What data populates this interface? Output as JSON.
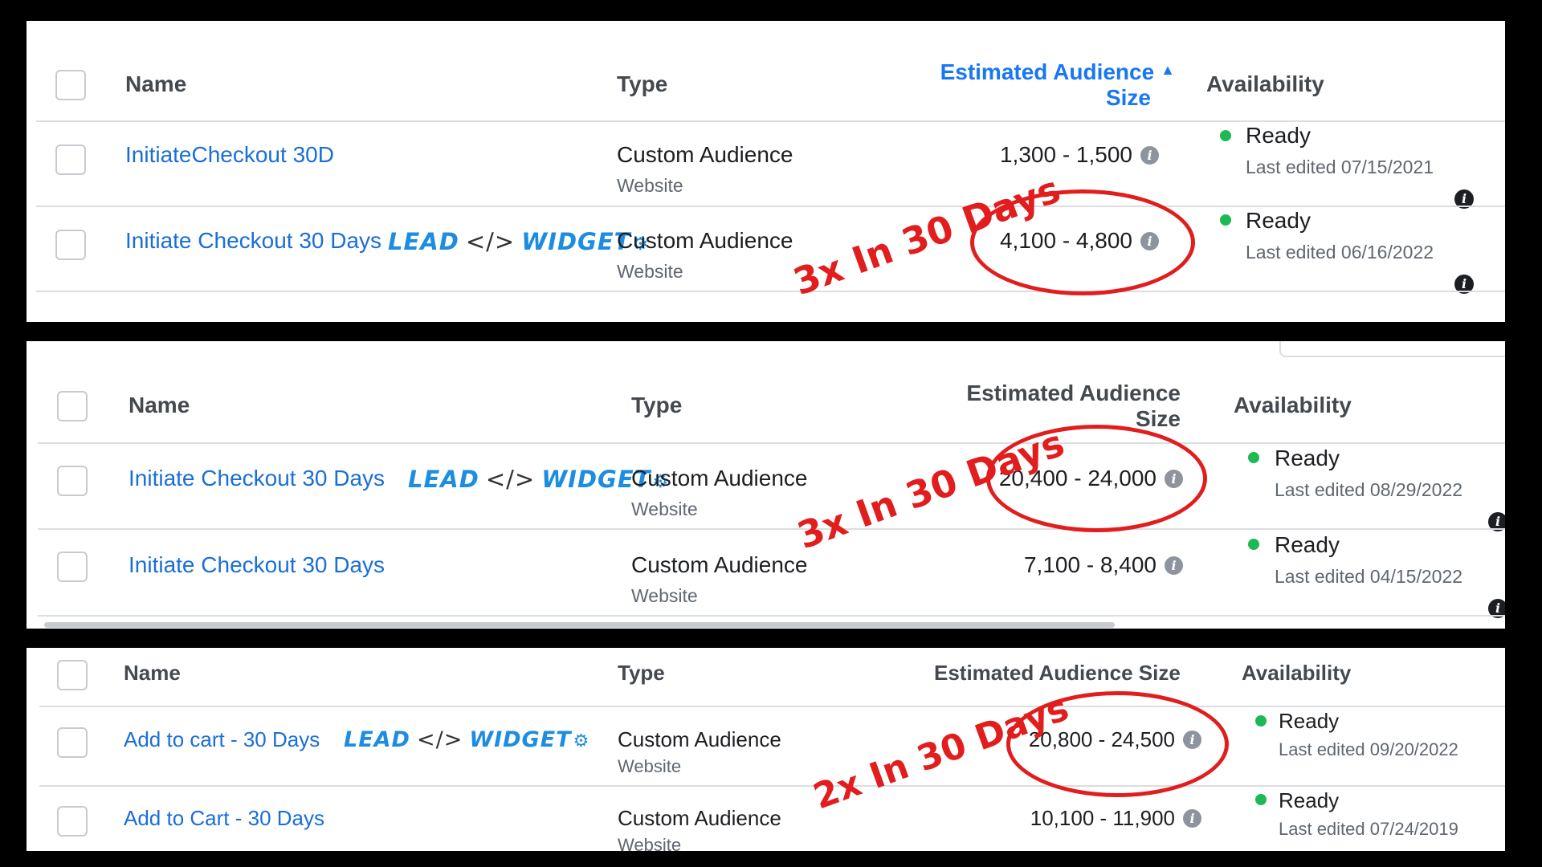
{
  "panels": [
    {
      "headers": {
        "name": "Name",
        "type": "Type",
        "size_line1": "Estimated Audience",
        "size_line2": "Size",
        "availability": "Availability"
      },
      "rows": [
        {
          "name": "InitiateCheckout 30D",
          "type": "Custom Audience",
          "source": "Website",
          "size": "1,300 - 1,500",
          "status": "Ready",
          "edited": "Last edited 07/15/2021"
        },
        {
          "name": "Initiate Checkout 30 Days",
          "type": "Custom Audience",
          "source": "Website",
          "size": "4,100 - 4,800",
          "status": "Ready",
          "edited": "Last edited 06/16/2022"
        }
      ],
      "annotation": "3x In 30 Days"
    },
    {
      "headers": {
        "name": "Name",
        "type": "Type",
        "size_line1": "Estimated Audience",
        "size_line2": "Size",
        "availability": "Availability"
      },
      "rows": [
        {
          "name": "Initiate Checkout 30 Days",
          "type": "Custom Audience",
          "source": "Website",
          "size": "20,400 - 24,000",
          "status": "Ready",
          "edited": "Last edited 08/29/2022"
        },
        {
          "name": "Initiate Checkout 30 Days",
          "type": "Custom Audience",
          "source": "Website",
          "size": "7,100 - 8,400",
          "status": "Ready",
          "edited": "Last edited 04/15/2022"
        }
      ],
      "annotation": "3x In 30 Days"
    },
    {
      "headers": {
        "name": "Name",
        "type": "Type",
        "size": "Estimated Audience Size",
        "availability": "Availability"
      },
      "rows": [
        {
          "name": "Add to cart - 30 Days",
          "type": "Custom Audience",
          "source": "Website",
          "size": "20,800 - 24,500",
          "status": "Ready",
          "edited": "Last edited 09/20/2022"
        },
        {
          "name": "Add to Cart - 30 Days",
          "type": "Custom Audience",
          "source": "Website",
          "size": "10,100 - 11,900",
          "status": "Ready",
          "edited": "Last edited 07/24/2019"
        }
      ],
      "annotation": "2x In 30 Days"
    }
  ],
  "logo": {
    "left": "LEAD",
    "mid": "</>",
    "right": "WIDGET"
  },
  "icons": {
    "info": "info-icon",
    "status": "status-dot-icon",
    "logo_gear": "gear-icon",
    "sort": "sort-ascending-icon"
  },
  "colors": {
    "link": "#1a6ed8",
    "sort_active": "#1877f2",
    "ready_dot": "#1db954",
    "annotation": "#e11d1d"
  }
}
